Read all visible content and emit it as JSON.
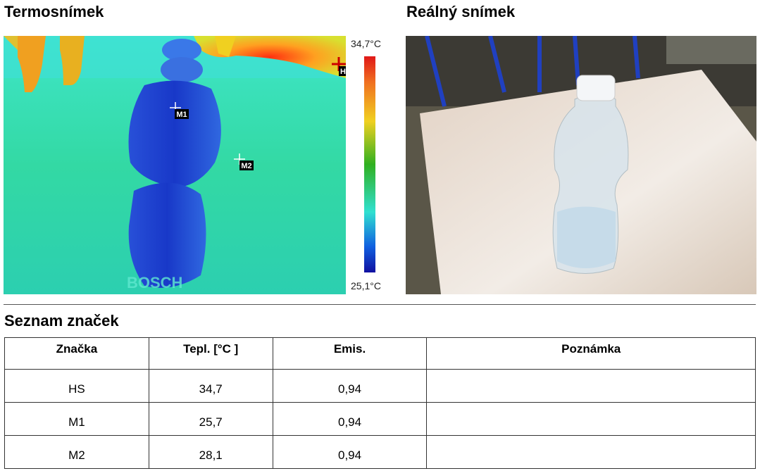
{
  "thermal": {
    "title": "Termosnímek",
    "scale_max": "34,7°C",
    "scale_min": "25,1°C",
    "markers": [
      "M1",
      "M2",
      "H"
    ],
    "watermark": "BOSCH"
  },
  "photo": {
    "title": "Reálný snímek"
  },
  "table": {
    "title": "Seznam značek",
    "columns": [
      "Značka",
      "Tepl. [°C ]",
      "Emis.",
      "Poznámka"
    ],
    "rows": [
      [
        "HS",
        "34,7",
        "0,94"
      ],
      [
        "M1",
        "25,7",
        "0,94"
      ],
      [
        "M2",
        "28,1",
        "0,94"
      ]
    ]
  }
}
